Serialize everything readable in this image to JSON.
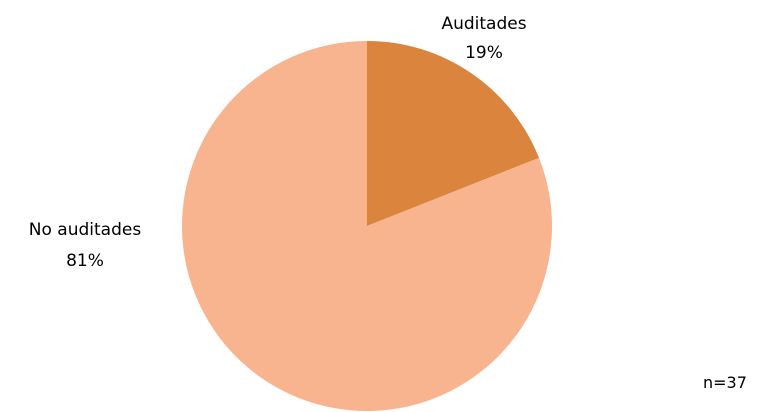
{
  "chart_data": {
    "type": "pie",
    "slices": [
      {
        "label": "Auditades",
        "value": 19,
        "value_label": "19%",
        "color": "#db843d"
      },
      {
        "label": "No auditades",
        "value": 81,
        "value_label": "81%",
        "color": "#f8b48f"
      }
    ],
    "start_angle": "12 o'clock",
    "direction": "clockwise",
    "legend": "none",
    "note": "n=37"
  }
}
